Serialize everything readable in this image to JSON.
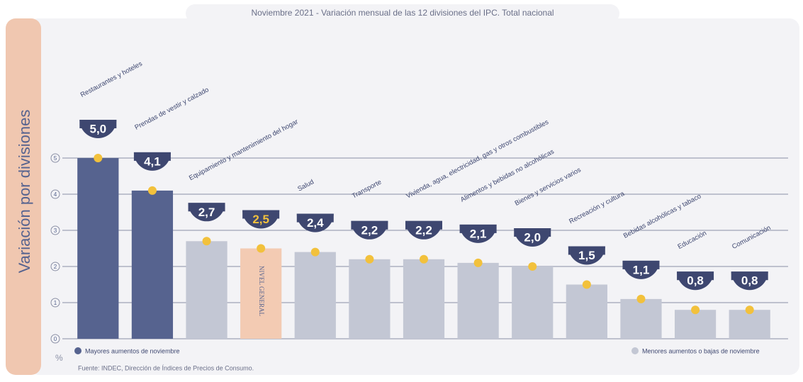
{
  "chart_data": {
    "type": "bar",
    "title": "Noviembre 2021 - Variación mensual de las 12 divisiones del IPC. Total nacional",
    "y_label": "Variación por divisiones",
    "unit_label": "%",
    "categories": [
      "Restaurantes y hoteles",
      "Prendas de vestir y calzado",
      "Equipamiento y mantenimiento del hogar",
      "NIVEL GENERAL",
      "Salud",
      "Transporte",
      "Vivienda, agua, electricidad, gas y otros combustibles",
      "Alimentos y bebidas no alcohólicas",
      "Bienes y servicios varios",
      "Recreación y cultura",
      "Bebidas alcohólicas y tabaco",
      "Educación",
      "Comunicación"
    ],
    "values": [
      5.0,
      4.1,
      2.7,
      2.5,
      2.4,
      2.2,
      2.2,
      2.1,
      2.0,
      1.5,
      1.1,
      0.8,
      0.8
    ],
    "value_labels": [
      "5,0",
      "4,1",
      "2,7",
      "2,5",
      "2,4",
      "2,2",
      "2,2",
      "2,1",
      "2,0",
      "1,5",
      "1,1",
      "0,8",
      "0,8"
    ],
    "colors": [
      "#56638f",
      "#56638f",
      "#c3c7d4",
      "#f3cbb3",
      "#c3c7d4",
      "#c3c7d4",
      "#c3c7d4",
      "#c3c7d4",
      "#c3c7d4",
      "#c3c7d4",
      "#c3c7d4",
      "#c3c7d4",
      "#c3c7d4"
    ],
    "legend": [
      {
        "label": "Mayores aumentos de noviembre",
        "color": "#56638f"
      },
      {
        "label": "Menores aumentos o bajas de noviembre",
        "color": "#c3c7d4"
      }
    ],
    "ylim": [
      0,
      5
    ],
    "yticks": [
      0,
      1,
      2,
      3,
      4,
      5
    ],
    "grid": true,
    "source": "Fuente: INDEC, Dirección de Índices de Precios de Consumo."
  }
}
